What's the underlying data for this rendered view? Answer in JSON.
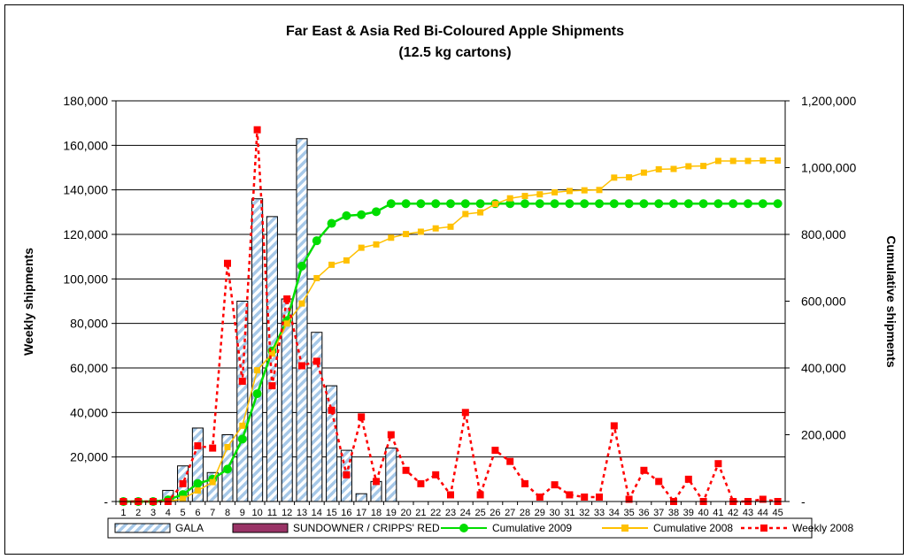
{
  "chart_data": {
    "type": "bar",
    "title": "Far East & Asia Red Bi-Coloured Apple Shipments",
    "subtitle": "(12.5 kg cartons)",
    "ylabel": "Weekly shipments",
    "y2label": "Cumulative shipments",
    "xlabel": "",
    "ylim": [
      0,
      180000
    ],
    "y2lim": [
      0,
      1200000
    ],
    "y_ticks": [
      "-",
      "20,000",
      "40,000",
      "60,000",
      "80,000",
      "100,000",
      "120,000",
      "140,000",
      "160,000",
      "180,000"
    ],
    "y2_ticks": [
      "-",
      "200,000",
      "400,000",
      "600,000",
      "800,000",
      "1,000,000",
      "1,200,000"
    ],
    "categories": [
      "1",
      "2",
      "3",
      "4",
      "5",
      "6",
      "7",
      "8",
      "9",
      "10",
      "11",
      "12",
      "13",
      "14",
      "15",
      "16",
      "17",
      "18",
      "19",
      "20",
      "21",
      "22",
      "23",
      "24",
      "25",
      "26",
      "27",
      "28",
      "29",
      "30",
      "31",
      "32",
      "33",
      "34",
      "35",
      "36",
      "37",
      "38",
      "39",
      "40",
      "41",
      "42",
      "43",
      "44",
      "45"
    ],
    "grid": true,
    "legend_position": "bottom",
    "series": [
      {
        "name": "GALA",
        "type": "bar",
        "axis": "left",
        "color": "#a6c8e8",
        "values": [
          0,
          0,
          0,
          5000,
          16000,
          33000,
          13000,
          30000,
          90000,
          136000,
          128000,
          91000,
          163000,
          76000,
          52000,
          23000,
          3500,
          9000,
          24000,
          0,
          0,
          0,
          0,
          0,
          0,
          0,
          0,
          0,
          0,
          0,
          0,
          0,
          0,
          0,
          0,
          0,
          0,
          0,
          0,
          0,
          0,
          0,
          0,
          0,
          0
        ]
      },
      {
        "name": "SUNDOWNER / CRIPPS' RED",
        "type": "bar",
        "axis": "left",
        "color": "#993366",
        "values": [
          0,
          0,
          0,
          0,
          0,
          0,
          0,
          0,
          0,
          0,
          0,
          0,
          0,
          0,
          0,
          0,
          0,
          0,
          0,
          0,
          0,
          0,
          0,
          0,
          0,
          0,
          0,
          0,
          0,
          0,
          0,
          0,
          0,
          0,
          0,
          0,
          0,
          0,
          0,
          0,
          0,
          0,
          0,
          0,
          0
        ]
      },
      {
        "name": "Cumulative 2009",
        "type": "line",
        "axis": "right",
        "color": "#00dd00",
        "values": [
          0,
          0,
          0,
          5000,
          21000,
          54000,
          67000,
          97000,
          187000,
          323000,
          451000,
          542000,
          705000,
          781000,
          833000,
          856000,
          859000,
          868000,
          892000,
          892000,
          892000,
          892000,
          892000,
          892000,
          892000,
          892000,
          892000,
          892000,
          892000,
          892000,
          892000,
          892000,
          892000,
          892000,
          892000,
          892000,
          892000,
          892000,
          892000,
          892000,
          892000,
          892000,
          892000,
          892000,
          892000
        ]
      },
      {
        "name": "Cumulative 2008",
        "type": "line",
        "axis": "right",
        "color": "#ffc000",
        "values": [
          0,
          0,
          0,
          0,
          8000,
          33000,
          58000,
          163000,
          227000,
          393000,
          443000,
          533000,
          593000,
          669000,
          709000,
          722000,
          760000,
          770000,
          790000,
          801000,
          808000,
          818000,
          823000,
          861000,
          866000,
          891000,
          908000,
          915000,
          920000,
          926000,
          930000,
          932000,
          933000,
          970000,
          971000,
          985000,
          995000,
          996000,
          1004000,
          1005000,
          1020000,
          1020000,
          1020000,
          1021000,
          1021000
        ]
      },
      {
        "name": "Weekly 2008",
        "type": "line",
        "axis": "left",
        "color": "#ff0000",
        "values": [
          0,
          0,
          0,
          0,
          8000,
          25000,
          24000,
          107000,
          54000,
          167000,
          52000,
          91000,
          61000,
          63000,
          41000,
          12000,
          38000,
          9000,
          30000,
          14000,
          8000,
          12000,
          3000,
          40000,
          3000,
          23000,
          18000,
          8000,
          2000,
          7500,
          3000,
          2000,
          2000,
          34000,
          1000,
          14000,
          9000,
          0,
          10000,
          0,
          17000,
          0,
          0,
          1000,
          0
        ]
      }
    ]
  }
}
